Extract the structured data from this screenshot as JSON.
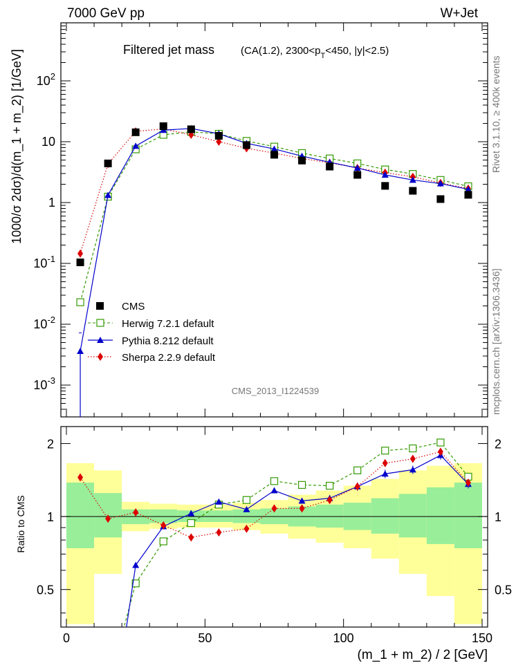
{
  "header": {
    "left": "7000 GeV pp",
    "right": "W+Jet"
  },
  "side": {
    "rivet": "Rivet 3.1.10, ≥ 400k events",
    "mcplots": "mcplots.cern.ch [arXiv:1306.3436]"
  },
  "analysis_id": "CMS_2013_I1224539",
  "chart_data": [
    {
      "type": "scatter",
      "panel": "main",
      "title": "Filtered jet mass",
      "subtitle": "(CA(1.2), 2300<p_T<450, |y|<2.5)",
      "ylabel": "1000/σ 2dσ)/d(m_1 + m_2) [1/GeV]",
      "xlabel": "(m_1 + m_2) / 2 [GeV]",
      "yscale": "log",
      "xlim": [
        -2,
        152
      ],
      "ylim": [
        0.0003,
        900
      ],
      "x_ticks": [
        "0",
        "50",
        "100",
        "150"
      ],
      "y_ticks": [
        "10^-3",
        "10^-2",
        "10^-1",
        "1",
        "10",
        "10^2"
      ],
      "legend_position": "bottom-left",
      "x": [
        5,
        15,
        25,
        35,
        45,
        55,
        65,
        75,
        85,
        95,
        105,
        115,
        125,
        135,
        145
      ],
      "series": [
        {
          "name": "CMS",
          "color": "#000000",
          "marker": "square",
          "values": [
            0.104,
            4.4,
            14.3,
            18.0,
            16.0,
            12.5,
            8.8,
            6.1,
            4.9,
            3.9,
            2.85,
            1.88,
            1.56,
            1.14,
            1.34
          ]
        },
        {
          "name": "Herwig 7.2.1 default",
          "color": "#339900",
          "marker": "open-square",
          "dash": "4,3",
          "values": [
            0.023,
            1.25,
            7.5,
            13.0,
            14.5,
            13.5,
            10.3,
            8.3,
            6.5,
            5.3,
            4.4,
            3.5,
            2.95,
            2.35,
            1.85
          ]
        },
        {
          "name": "Pythia 8.212 default",
          "color": "#0000cc",
          "marker": "triangle",
          "values": [
            0.0036,
            1.32,
            8.5,
            15.5,
            16.5,
            13.5,
            9.4,
            7.6,
            5.8,
            4.6,
            3.7,
            2.85,
            2.35,
            2.05,
            1.65
          ]
        },
        {
          "name": "Sherpa 2.2.9 default",
          "color": "#dd0000",
          "marker": "diamond",
          "dash": "1.5,2.5",
          "values": [
            0.145,
            4.3,
            14.8,
            16.2,
            13.0,
            10.0,
            7.8,
            6.5,
            5.3,
            4.5,
            3.7,
            3.1,
            2.65,
            2.1,
            1.7
          ]
        }
      ]
    },
    {
      "type": "scatter",
      "panel": "ratio",
      "ylabel": "Ratio to CMS",
      "yscale": "log",
      "ylim": [
        0.35,
        2.35
      ],
      "y_ticks": [
        "0.5",
        "1",
        "2"
      ],
      "bands": {
        "edges": [
          0,
          10,
          20,
          30,
          40,
          50,
          60,
          70,
          80,
          90,
          100,
          110,
          120,
          130,
          140,
          150
        ],
        "inner_color": "#99ee99",
        "outer_color": "#ffff99",
        "inner_lo": [
          0.74,
          0.82,
          0.93,
          0.94,
          0.95,
          0.95,
          0.94,
          0.93,
          0.91,
          0.9,
          0.88,
          0.85,
          0.82,
          0.77,
          0.74
        ],
        "inner_hi": [
          1.38,
          1.25,
          1.07,
          1.07,
          1.06,
          1.06,
          1.07,
          1.08,
          1.1,
          1.12,
          1.14,
          1.19,
          1.24,
          1.32,
          1.38
        ],
        "outer_lo": [
          0.36,
          0.58,
          0.87,
          0.89,
          0.9,
          0.9,
          0.88,
          0.85,
          0.81,
          0.78,
          0.74,
          0.67,
          0.58,
          0.47,
          0.36
        ],
        "outer_hi": [
          1.66,
          1.55,
          1.15,
          1.13,
          1.12,
          1.12,
          1.14,
          1.17,
          1.23,
          1.28,
          1.34,
          1.43,
          1.55,
          1.62,
          1.66
        ]
      },
      "series": [
        {
          "name": "Herwig 7.2.1 default",
          "values": [
            null,
            null,
            0.53,
            0.79,
            0.94,
            1.12,
            1.17,
            1.4,
            1.35,
            1.34,
            1.55,
            1.87,
            1.91,
            2.02,
            1.46
          ]
        },
        {
          "name": "Pythia 8.212 default",
          "values": [
            null,
            null,
            0.63,
            0.91,
            1.03,
            1.15,
            1.07,
            1.28,
            1.16,
            1.19,
            1.33,
            1.5,
            1.56,
            1.79,
            1.36
          ]
        },
        {
          "name": "Sherpa 2.2.9 default",
          "values": [
            1.45,
            0.98,
            1.04,
            0.92,
            0.82,
            0.86,
            0.89,
            1.08,
            1.08,
            1.17,
            1.33,
            1.66,
            1.73,
            1.85,
            1.38
          ]
        }
      ]
    }
  ]
}
